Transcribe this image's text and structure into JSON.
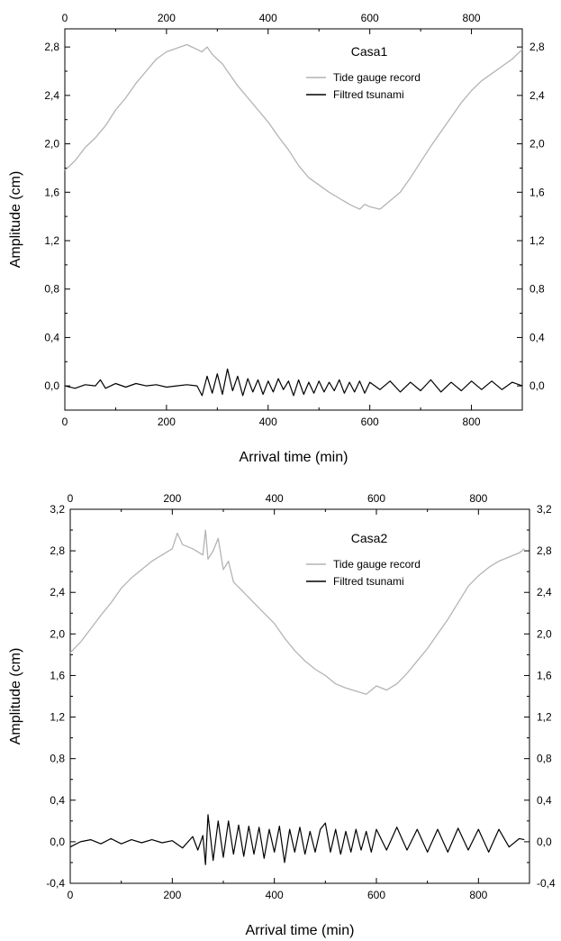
{
  "chart_data": [
    {
      "type": "line",
      "title": "Casa1",
      "xlabel": "Arrival time (min)",
      "ylabel": "Amplitude (cm)",
      "xlim": [
        0,
        900
      ],
      "ylim": [
        -0.2,
        2.95
      ],
      "x_ticks": [
        "0",
        "200",
        "400",
        "600",
        "800"
      ],
      "y_ticks": [
        "0,0",
        "0,4",
        "0,8",
        "1,2",
        "1,6",
        "2,0",
        "2,4",
        "2,8"
      ],
      "y_tick_values": [
        0,
        0.4,
        0.8,
        1.2,
        1.6,
        2.0,
        2.4,
        2.8
      ],
      "x_tick_values": [
        0,
        200,
        400,
        600,
        800
      ],
      "legend_position": "top-right",
      "series": [
        {
          "name": "Tide gauge record",
          "color": "#b4b4b4",
          "x": [
            0,
            20,
            40,
            60,
            80,
            100,
            120,
            140,
            160,
            180,
            200,
            220,
            240,
            250,
            260,
            270,
            280,
            290,
            300,
            310,
            320,
            340,
            360,
            380,
            400,
            420,
            440,
            460,
            480,
            500,
            520,
            540,
            560,
            570,
            580,
            590,
            600,
            620,
            640,
            660,
            680,
            700,
            720,
            740,
            760,
            780,
            800,
            820,
            840,
            860,
            880,
            900
          ],
          "y": [
            1.78,
            1.86,
            1.97,
            2.05,
            2.15,
            2.28,
            2.38,
            2.5,
            2.6,
            2.7,
            2.76,
            2.79,
            2.82,
            2.8,
            2.78,
            2.76,
            2.8,
            2.74,
            2.7,
            2.66,
            2.6,
            2.48,
            2.38,
            2.28,
            2.18,
            2.06,
            1.95,
            1.82,
            1.72,
            1.66,
            1.6,
            1.55,
            1.5,
            1.48,
            1.46,
            1.5,
            1.48,
            1.46,
            1.53,
            1.6,
            1.72,
            1.85,
            1.98,
            2.1,
            2.22,
            2.34,
            2.44,
            2.52,
            2.58,
            2.64,
            2.7,
            2.78
          ]
        },
        {
          "name": "Filtred tsunami",
          "color": "#000000",
          "x": [
            0,
            20,
            40,
            60,
            70,
            80,
            100,
            120,
            140,
            160,
            180,
            200,
            220,
            240,
            260,
            270,
            280,
            290,
            300,
            310,
            320,
            330,
            340,
            350,
            360,
            370,
            380,
            390,
            400,
            410,
            420,
            430,
            440,
            450,
            460,
            470,
            480,
            490,
            500,
            510,
            520,
            530,
            540,
            550,
            560,
            570,
            580,
            590,
            600,
            620,
            640,
            660,
            680,
            700,
            720,
            740,
            760,
            780,
            800,
            820,
            840,
            860,
            880,
            900
          ],
          "y": [
            0.0,
            -0.02,
            0.01,
            0.0,
            0.05,
            -0.02,
            0.02,
            -0.01,
            0.02,
            0.0,
            0.01,
            -0.01,
            0.0,
            0.01,
            0.0,
            -0.08,
            0.08,
            -0.06,
            0.1,
            -0.07,
            0.14,
            -0.04,
            0.08,
            -0.08,
            0.06,
            -0.05,
            0.05,
            -0.07,
            0.04,
            -0.05,
            0.06,
            -0.03,
            0.04,
            -0.08,
            0.05,
            -0.07,
            0.03,
            -0.06,
            0.04,
            -0.05,
            0.03,
            -0.04,
            0.05,
            -0.06,
            0.03,
            -0.05,
            0.04,
            -0.06,
            0.03,
            -0.03,
            0.04,
            -0.05,
            0.03,
            -0.04,
            0.05,
            -0.05,
            0.03,
            -0.04,
            0.04,
            -0.03,
            0.04,
            -0.03,
            0.03,
            0.0
          ]
        }
      ]
    },
    {
      "type": "line",
      "title": "Casa2",
      "xlabel": "Arrival time (min)",
      "ylabel": "Amplitude (cm)",
      "xlim": [
        0,
        900
      ],
      "ylim": [
        -0.4,
        3.2
      ],
      "x_ticks": [
        "0",
        "200",
        "400",
        "600",
        "800"
      ],
      "y_ticks": [
        "-0,4",
        "0,0",
        "0,4",
        "0,8",
        "1,2",
        "1,6",
        "2,0",
        "2,4",
        "2,8",
        "3,2"
      ],
      "y_tick_values": [
        -0.4,
        0,
        0.4,
        0.8,
        1.2,
        1.6,
        2.0,
        2.4,
        2.8,
        3.2
      ],
      "x_tick_values": [
        0,
        200,
        400,
        600,
        800
      ],
      "legend_position": "top-right",
      "series": [
        {
          "name": "Tide gauge record",
          "color": "#b4b4b4",
          "x": [
            0,
            20,
            40,
            60,
            80,
            100,
            120,
            140,
            160,
            180,
            200,
            210,
            220,
            240,
            260,
            265,
            270,
            280,
            290,
            300,
            310,
            320,
            340,
            360,
            380,
            400,
            420,
            440,
            460,
            480,
            500,
            520,
            540,
            560,
            580,
            600,
            620,
            640,
            660,
            680,
            700,
            720,
            740,
            760,
            780,
            800,
            820,
            840,
            860,
            880,
            890
          ],
          "y": [
            1.82,
            1.92,
            2.05,
            2.18,
            2.3,
            2.44,
            2.54,
            2.62,
            2.7,
            2.76,
            2.82,
            2.97,
            2.86,
            2.82,
            2.76,
            3.0,
            2.72,
            2.8,
            2.92,
            2.62,
            2.7,
            2.5,
            2.4,
            2.3,
            2.2,
            2.1,
            1.96,
            1.84,
            1.74,
            1.66,
            1.6,
            1.52,
            1.48,
            1.45,
            1.42,
            1.5,
            1.46,
            1.52,
            1.62,
            1.74,
            1.86,
            2.0,
            2.14,
            2.3,
            2.46,
            2.56,
            2.64,
            2.7,
            2.74,
            2.78,
            2.82
          ]
        },
        {
          "name": "Filtred tsunami",
          "color": "#000000",
          "x": [
            0,
            20,
            40,
            60,
            80,
            100,
            120,
            140,
            160,
            180,
            200,
            220,
            240,
            250,
            260,
            265,
            270,
            280,
            290,
            300,
            310,
            320,
            330,
            340,
            350,
            360,
            370,
            380,
            390,
            400,
            410,
            420,
            430,
            440,
            450,
            460,
            470,
            480,
            490,
            500,
            510,
            520,
            530,
            540,
            550,
            560,
            570,
            580,
            590,
            600,
            620,
            640,
            660,
            680,
            700,
            720,
            740,
            760,
            780,
            800,
            820,
            840,
            860,
            880,
            890
          ],
          "y": [
            -0.05,
            0.0,
            0.02,
            -0.02,
            0.03,
            -0.02,
            0.02,
            -0.01,
            0.02,
            -0.01,
            0.01,
            -0.06,
            0.05,
            -0.08,
            0.06,
            -0.22,
            0.26,
            -0.18,
            0.2,
            -0.15,
            0.2,
            -0.12,
            0.16,
            -0.14,
            0.15,
            -0.12,
            0.14,
            -0.16,
            0.12,
            -0.1,
            0.15,
            -0.2,
            0.12,
            -0.1,
            0.14,
            -0.12,
            0.1,
            -0.1,
            0.12,
            0.18,
            -0.1,
            0.12,
            -0.12,
            0.1,
            -0.1,
            0.12,
            -0.08,
            0.1,
            -0.1,
            0.12,
            -0.08,
            0.14,
            -0.08,
            0.12,
            -0.1,
            0.12,
            -0.1,
            0.13,
            -0.08,
            0.12,
            -0.1,
            0.12,
            -0.05,
            0.03,
            0.02
          ]
        }
      ]
    }
  ]
}
